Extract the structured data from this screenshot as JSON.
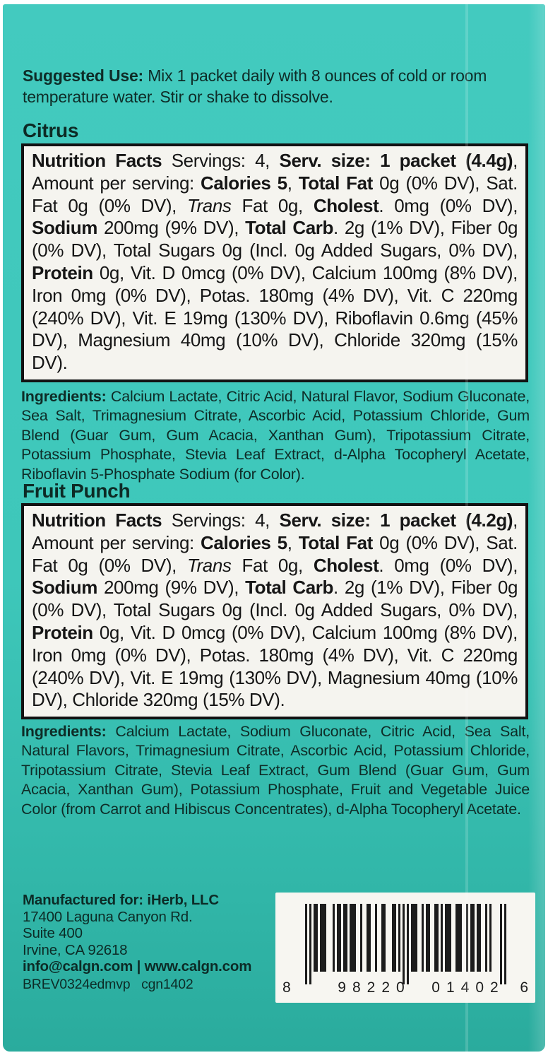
{
  "suggested_use": {
    "lead": "Suggested Use:",
    "text": " Mix 1 packet daily with 8 ounces of cold or room temperature water. Stir or shake to dissolve."
  },
  "flavors": [
    {
      "name": "Citrus",
      "nutrition_segments": [
        {
          "t": "Nutrition Facts ",
          "b": true
        },
        {
          "t": "Servings: 4, "
        },
        {
          "t": "Serv. size: 1 packet (4.4g)",
          "b": true
        },
        {
          "t": ", Amount per serving: "
        },
        {
          "t": "Calories 5",
          "b": true
        },
        {
          "t": ", "
        },
        {
          "t": "Total Fat",
          "b": true
        },
        {
          "t": " 0g (0% DV), Sat. Fat 0g (0% DV), "
        },
        {
          "t": "Trans",
          "i": true
        },
        {
          "t": " Fat 0g, "
        },
        {
          "t": "Cholest",
          "b": true
        },
        {
          "t": ". 0mg (0% DV), "
        },
        {
          "t": "Sodium",
          "b": true
        },
        {
          "t": " 200mg (9% DV), "
        },
        {
          "t": "Total Carb",
          "b": true
        },
        {
          "t": ". 2g (1% DV), Fiber 0g (0% DV), Total Sugars 0g (Incl. 0g Added Sugars, 0% DV), "
        },
        {
          "t": "Protein",
          "b": true
        },
        {
          "t": " 0g, Vit. D 0mcg (0% DV), Calcium 100mg (8% DV), Iron 0mg (0% DV), Potas. 180mg (4% DV), Vit. C 220mg (240% DV), Vit. E 19mg (130% DV), Riboflavin 0.6mg (45% DV), Magnesium 40mg (10% DV), Chloride 320mg (15% DV)."
        }
      ],
      "ingredients_segments": [
        {
          "t": "Ingredients: ",
          "b": true
        },
        {
          "t": "Calcium Lactate, Citric Acid, Natural Flavor, Sodium Gluconate, Sea Salt, Trimagnesium Citrate, Ascorbic Acid, Potassium Chloride, Gum Blend (Guar Gum, Gum Acacia, Xanthan Gum), Tripotassium Citrate, Potassium Phosphate, Stevia Leaf Extract, d-Alpha Tocopheryl Acetate, Riboflavin 5-Phosphate Sodium (for Color)."
        }
      ]
    },
    {
      "name": "Fruit Punch",
      "nutrition_segments": [
        {
          "t": "Nutrition Facts ",
          "b": true
        },
        {
          "t": "Servings: 4, "
        },
        {
          "t": "Serv. size: 1 packet (4.2g)",
          "b": true
        },
        {
          "t": ", Amount per serving: "
        },
        {
          "t": "Calories 5",
          "b": true
        },
        {
          "t": ", "
        },
        {
          "t": "Total Fat",
          "b": true
        },
        {
          "t": " 0g (0% DV), Sat. Fat 0g (0% DV), "
        },
        {
          "t": "Trans",
          "i": true
        },
        {
          "t": " Fat 0g, "
        },
        {
          "t": "Cholest",
          "b": true
        },
        {
          "t": ". 0mg (0% DV), "
        },
        {
          "t": "Sodium",
          "b": true
        },
        {
          "t": " 200mg (9% DV), "
        },
        {
          "t": "Total Carb",
          "b": true
        },
        {
          "t": ". 2g (1% DV), Fiber 0g (0% DV), Total Sugars 0g (Incl. 0g Added Sugars, 0% DV), "
        },
        {
          "t": "Protein",
          "b": true
        },
        {
          "t": " 0g, Vit. D 0mcg (0% DV), Calcium 100mg (8% DV), Iron 0mg (0% DV), Potas. 180mg (4% DV), Vit. C 220mg (240% DV), Vit. E 19mg (130% DV), Magnesium 40mg (10% DV), Chloride 320mg (15% DV)."
        }
      ],
      "ingredients_segments": [
        {
          "t": "Ingredients: ",
          "b": true
        },
        {
          "t": "Calcium Lactate, Sodium Gluconate, Citric Acid, Sea Salt, Natural Flavors, Trimagnesium Citrate, Ascorbic Acid, Potassium Chloride, Tripotassium Citrate, Stevia Leaf Extract, Gum Blend (Guar Gum, Gum Acacia, Xanthan Gum), Potassium Phosphate, Fruit and Vegetable Juice Color (from Carrot and Hibiscus Concentrates), d-Alpha Tocopheryl Acetate."
        }
      ]
    }
  ],
  "manufacturer": {
    "title": "Manufactured for: iHerb, LLC",
    "address_line1": "17400 Laguna Canyon Rd.",
    "address_line2": "Suite 400",
    "address_line3": "Irvine, CA 92618",
    "contact": "info@calgn.com | www.calgn.com",
    "lot_codes": "BREV0324edmvp   cgn1402"
  },
  "barcode": {
    "digits": "898220014026",
    "left_digit": "8",
    "left_group": "98220",
    "right_group": "01402",
    "right_digit": "6"
  },
  "colors": {
    "teal_top": "#43cabf",
    "teal_bottom": "#2aab9d",
    "panel_bg": "#f5f4ef",
    "text_dark": "#0e2c27"
  }
}
